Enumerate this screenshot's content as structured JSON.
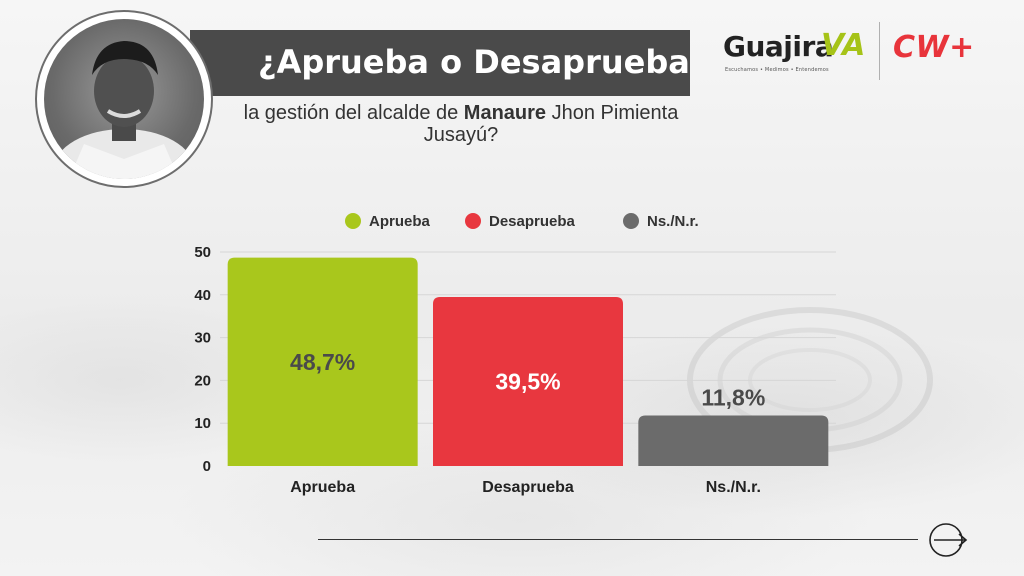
{
  "header": {
    "title": "¿Aprueba o Desaprueba",
    "subtitle_pre": "la gestión del alcalde de ",
    "subtitle_bold": "Manaure",
    "subtitle_post": " Jhon Pimienta Jusayú?",
    "photo": "portrait-photo"
  },
  "logos": {
    "guajira_text": "Guajira",
    "guajira_accent": "VA",
    "guajira_tagline": "Escuchamos • Medimos • Entendemos",
    "cw_text": "CW+"
  },
  "colors": {
    "aprueba": "#a9c71c",
    "desaprueba": "#e8373f",
    "ns_nr": "#6b6b6b",
    "title_bar": "#4a4a4a"
  },
  "chart_data": {
    "type": "bar",
    "categories": [
      "Aprueba",
      "Desaprueba",
      "Ns./N.r."
    ],
    "values": [
      48.7,
      39.5,
      11.8
    ],
    "value_labels": [
      "48,7%",
      "39,5%",
      "11,8%"
    ],
    "legend": [
      "Aprueba",
      "Desaprueba",
      "Ns./N.r."
    ],
    "legend_placement": "top",
    "y_ticks": [
      0,
      10,
      20,
      30,
      40,
      50
    ],
    "ylim": [
      0,
      50
    ],
    "grid": true,
    "xlabel": "",
    "ylabel": ""
  },
  "nav": {
    "next_icon": "arrow-right-circle-icon"
  }
}
